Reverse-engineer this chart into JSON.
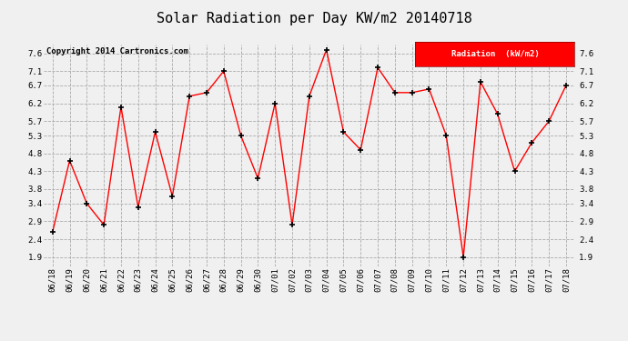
{
  "title": "Solar Radiation per Day KW/m2 20140718",
  "copyright": "Copyright 2014 Cartronics.com",
  "legend_label": "Radiation  (kW/m2)",
  "dates": [
    "06/18",
    "06/19",
    "06/20",
    "06/21",
    "06/22",
    "06/23",
    "06/24",
    "06/25",
    "06/26",
    "06/27",
    "06/28",
    "06/29",
    "06/30",
    "07/01",
    "07/02",
    "07/03",
    "07/04",
    "07/05",
    "07/06",
    "07/07",
    "07/08",
    "07/09",
    "07/10",
    "07/11",
    "07/12",
    "07/13",
    "07/14",
    "07/15",
    "07/16",
    "07/17",
    "07/18"
  ],
  "values": [
    2.6,
    4.6,
    3.4,
    2.8,
    6.1,
    3.3,
    5.4,
    3.6,
    6.4,
    6.5,
    7.1,
    5.3,
    4.1,
    6.2,
    2.8,
    6.4,
    7.7,
    5.4,
    4.9,
    7.2,
    6.5,
    6.5,
    6.6,
    5.3,
    1.9,
    6.8,
    5.9,
    4.3,
    5.1,
    5.7,
    6.7
  ],
  "yticks": [
    1.9,
    2.4,
    2.9,
    3.4,
    3.8,
    4.3,
    4.8,
    5.3,
    5.7,
    6.2,
    6.7,
    7.1,
    7.6
  ],
  "ylim": [
    1.65,
    7.85
  ],
  "line_color": "red",
  "marker": "+",
  "marker_color": "black",
  "grid_color": "#aaaaaa",
  "bg_color": "#f0f0f0",
  "title_fontsize": 11,
  "copyright_fontsize": 6.5,
  "tick_fontsize": 6.5,
  "legend_bg": "red",
  "legend_fg": "white"
}
